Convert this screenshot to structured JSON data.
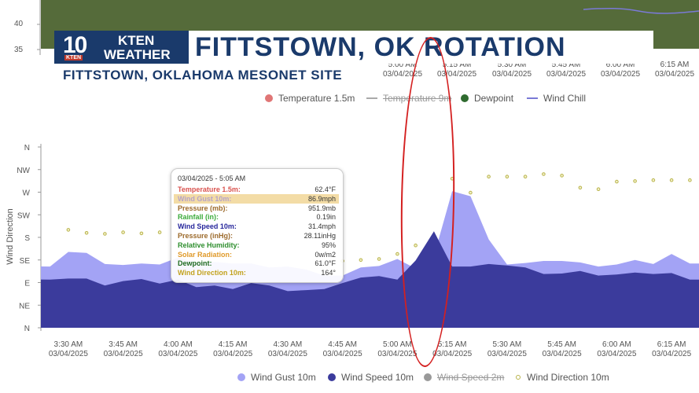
{
  "top_chart": {
    "y_ticks": [
      "40",
      "35"
    ],
    "x_ticks": [
      {
        "time": "5:00 AM",
        "date": "03/04/2025"
      },
      {
        "time": "5:15 AM",
        "date": "03/04/2025"
      },
      {
        "time": "5:30 AM",
        "date": "03/04/2025"
      },
      {
        "time": "5:45 AM",
        "date": "03/04/2025"
      },
      {
        "time": "6:00 AM",
        "date": "03/04/2025"
      },
      {
        "time": "6:15 AM",
        "date": "03/04/2025"
      }
    ],
    "legend": [
      {
        "label": "Temperature 1.5m",
        "style": "dot",
        "color": "#e07676",
        "hidden": false
      },
      {
        "label": "Temperature 9m",
        "style": "line",
        "color": "#aaaaaa",
        "hidden": true
      },
      {
        "label": "Dewpoint",
        "style": "dot",
        "color": "#2f6b2f",
        "hidden": false
      },
      {
        "label": "Wind Chill",
        "style": "line",
        "color": "#7a7ad6",
        "hidden": false
      }
    ]
  },
  "banner": {
    "logo_number": "10",
    "logo_station": "KTEN",
    "logo_weather": "WEATHER",
    "logo_small": "KTEN",
    "title": "FITTSTOWN, OK ROTATION",
    "subtitle": "FITTSTOWN, OKLAHOMA MESONET SITE"
  },
  "chart_data": {
    "type": "area",
    "ylabel": "Wind Direction",
    "y_ticks": [
      "N",
      "NW",
      "W",
      "SW",
      "S",
      "SE",
      "E",
      "NE",
      "N"
    ],
    "x": [
      "3:25 AM",
      "3:30 AM",
      "3:35 AM",
      "3:40 AM",
      "3:45 AM",
      "3:50 AM",
      "3:55 AM",
      "4:00 AM",
      "4:05 AM",
      "4:10 AM",
      "4:15 AM",
      "4:20 AM",
      "4:25 AM",
      "4:30 AM",
      "4:35 AM",
      "4:40 AM",
      "4:45 AM",
      "4:50 AM",
      "4:55 AM",
      "5:00 AM",
      "5:05 AM",
      "5:10 AM",
      "5:15 AM",
      "5:20 AM",
      "5:25 AM",
      "5:30 AM",
      "5:35 AM",
      "5:40 AM",
      "5:45 AM",
      "5:50 AM",
      "5:55 AM",
      "6:00 AM",
      "6:05 AM",
      "6:10 AM",
      "6:15 AM",
      "6:20 AM"
    ],
    "x_ticks": [
      {
        "time": "3:30 AM",
        "date": "03/04/2025"
      },
      {
        "time": "3:45 AM",
        "date": "03/04/2025"
      },
      {
        "time": "4:00 AM",
        "date": "03/04/2025"
      },
      {
        "time": "4:15 AM",
        "date": "03/04/2025"
      },
      {
        "time": "4:30 AM",
        "date": "03/04/2025"
      },
      {
        "time": "4:45 AM",
        "date": "03/04/2025"
      },
      {
        "time": "5:00 AM",
        "date": "03/04/2025"
      },
      {
        "time": "5:15 AM",
        "date": "03/04/2025"
      },
      {
        "time": "5:30 AM",
        "date": "03/04/2025"
      },
      {
        "time": "5:45 AM",
        "date": "03/04/2025"
      },
      {
        "time": "6:00 AM",
        "date": "03/04/2025"
      },
      {
        "time": "6:15 AM",
        "date": "03/04/2025"
      }
    ],
    "series": [
      {
        "name": "Wind Gust 10m",
        "unit": "degrees (0=N, 180=S, 360=N)",
        "color": "#a3a3f5",
        "values": [
          122,
          151,
          149,
          127,
          125,
          128,
          126,
          140,
          130,
          131,
          128,
          128,
          120,
          122,
          116,
          104,
          104,
          120,
          123,
          137,
          118,
          143,
          272,
          262,
          176,
          126,
          129,
          133,
          133,
          130,
          122,
          126,
          135,
          127,
          147,
          128
        ]
      },
      {
        "name": "Wind Speed 10m",
        "unit": "degrees (0=N, 180=S, 360=N)",
        "color": "#3b3b9c",
        "values": [
          96,
          98,
          98,
          84,
          93,
          97,
          88,
          96,
          81,
          84,
          77,
          89,
          84,
          73,
          75,
          77,
          89,
          100,
          103,
          96,
          134,
          192,
          122,
          122,
          127,
          124,
          120,
          107,
          108,
          113,
          104,
          106,
          110,
          107,
          109,
          96
        ]
      },
      {
        "name": "Wind Speed 2m",
        "hidden": true,
        "color": "#999999"
      },
      {
        "name": "Wind Direction 10m",
        "style": "points",
        "color": "#b8b34a",
        "values": [
          null,
          195,
          189,
          187,
          190,
          188,
          190,
          null,
          null,
          null,
          null,
          null,
          null,
          null,
          null,
          null,
          133,
          135,
          137,
          147,
          164,
          null,
          297,
          269,
          301,
          301,
          301,
          306,
          303,
          279,
          276,
          291,
          292,
          294,
          294,
          294
        ]
      }
    ],
    "tooltip": {
      "header": "03/04/2025 - 5:05 AM",
      "rows": [
        {
          "label": "Temperature 1.5m:",
          "value": "62.4°F",
          "color": "#d9534f"
        },
        {
          "label": "Wind Gust 10m:",
          "value": "86.9mph",
          "color": "#b5a3c8",
          "highlight": true
        },
        {
          "label": "Pressure (mb):",
          "value": "951.9mb",
          "color": "#9c6a2b"
        },
        {
          "label": "Rainfall (in):",
          "value": "0.19in",
          "color": "#3aab3a"
        },
        {
          "label": "Wind Speed 10m:",
          "value": "31.4mph",
          "color": "#27279c"
        },
        {
          "label": "Pressure (inHg):",
          "value": "28.11inHg",
          "color": "#9c6a2b"
        },
        {
          "label": "Relative Humidity:",
          "value": "95%",
          "color": "#2f8f2f"
        },
        {
          "label": "Solar Radiation:",
          "value": "0w/m2",
          "color": "#e09a2a"
        },
        {
          "label": "Dewpoint:",
          "value": "61.0°F",
          "color": "#1f6b1f"
        },
        {
          "label": "Wind Direction 10m:",
          "value": "164°",
          "color": "#c2a21e"
        }
      ]
    },
    "grid": false,
    "legend_position": "bottom"
  }
}
